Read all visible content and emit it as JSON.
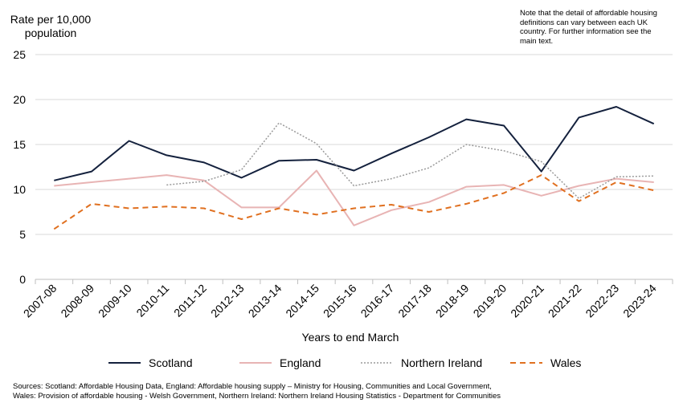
{
  "y_axis_label_line1": "Rate per 10,000",
  "y_axis_label_line2": "population",
  "note": "Note that the detail of affordable housing definitions can vary between each UK country. For further information see the main text.",
  "sources_line1": "Sources: Scotland: Affordable Housing Data, England: Affordable housing supply – Ministry for Housing, Communities and Local Government,",
  "sources_line2": "Wales: Provision of affordable housing - Welsh Government, Northern Ireland: Northern Ireland Housing Statistics - Department for Communities",
  "chart_data": {
    "type": "line",
    "title": "",
    "xlabel": "Years to end March",
    "ylabel": "Rate per 10,000 population",
    "ylim": [
      0,
      25
    ],
    "yticks": [
      0,
      5,
      10,
      15,
      20,
      25
    ],
    "grid": true,
    "legend": "bottom",
    "categories": [
      "2007-08",
      "2008-09",
      "2009-10",
      "2010-11",
      "2011-12",
      "2012-13",
      "2013-14",
      "2014-15",
      "2015-16",
      "2016-17",
      "2017-18",
      "2018-19",
      "2019-20",
      "2020-21",
      "2021-22",
      "2022-23",
      "2023-24"
    ],
    "series": [
      {
        "name": "Scotland",
        "color": "#14213d",
        "dash": "solid",
        "values": [
          11.0,
          12.0,
          15.4,
          13.8,
          13.0,
          11.3,
          13.2,
          13.3,
          12.1,
          14.0,
          15.8,
          17.8,
          17.1,
          12.0,
          18.0,
          19.2,
          17.3
        ]
      },
      {
        "name": "England",
        "color": "#e8b4b4",
        "dash": "solid",
        "values": [
          10.4,
          10.8,
          11.2,
          11.6,
          11.0,
          8.0,
          8.0,
          12.1,
          6.0,
          7.7,
          8.6,
          10.3,
          10.5,
          9.3,
          10.4,
          11.2,
          10.8
        ]
      },
      {
        "name": "Northern Ireland",
        "color": "#9a9a9a",
        "dash": "dotted",
        "values": [
          null,
          null,
          null,
          10.5,
          10.9,
          12.2,
          17.4,
          15.1,
          10.4,
          11.2,
          12.4,
          15.0,
          14.3,
          13.1,
          9.0,
          11.4,
          11.5
        ]
      },
      {
        "name": "Wales",
        "color": "#e07020",
        "dash": "dashed",
        "values": [
          5.6,
          8.4,
          7.9,
          8.1,
          7.9,
          6.7,
          7.9,
          7.2,
          7.9,
          8.3,
          7.5,
          8.4,
          9.6,
          11.6,
          8.7,
          10.8,
          9.9
        ]
      }
    ]
  }
}
